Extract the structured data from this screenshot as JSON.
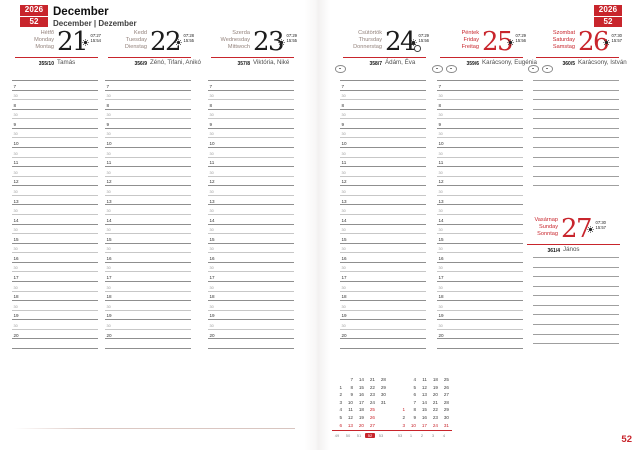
{
  "page": {
    "year": "2026",
    "week": "52",
    "month_title": "December",
    "month_subtitle": "December | Dezember",
    "page_number": "52"
  },
  "colors": {
    "accent_red": "#c8252c",
    "line_dark": "#8f8f8f",
    "line_light": "#c7c7c7"
  },
  "days": [
    {
      "name_hu": "Hétfő",
      "name_en": "Monday",
      "name_de": "Montag",
      "date": "21",
      "sunrise": "07:27",
      "sunset": "15:54",
      "day_of_year": "355/10",
      "namedays": "Tamás",
      "red": false
    },
    {
      "name_hu": "Kedd",
      "name_en": "Tuesday",
      "name_de": "Dienstag",
      "date": "22",
      "sunrise": "07:28",
      "sunset": "15:55",
      "day_of_year": "356/9",
      "namedays": "Zénó, Tifani, Anikó",
      "red": false
    },
    {
      "name_hu": "Szerda",
      "name_en": "Wednesday",
      "name_de": "Mittwoch",
      "date": "23",
      "sunrise": "07:29",
      "sunset": "15:55",
      "day_of_year": "357/8",
      "namedays": "Viktória, Niké",
      "red": false
    },
    {
      "name_hu": "Csütörtök",
      "name_en": "Thursday",
      "name_de": "Donnerstag",
      "date": "24",
      "sunrise": "07:29",
      "sunset": "15:56",
      "day_of_year": "358/7",
      "namedays": "Ádám, Éva",
      "red": false
    },
    {
      "name_hu": "Péntek",
      "name_en": "Friday",
      "name_de": "Freitag",
      "date": "25",
      "sunrise": "07:29",
      "sunset": "15:56",
      "day_of_year": "359/6",
      "namedays": "Karácsony, Eugénia",
      "red": true
    },
    {
      "name_hu": "Szombat",
      "name_en": "Saturday",
      "name_de": "Samstag",
      "date": "26",
      "sunrise": "07:30",
      "sunset": "15:57",
      "day_of_year": "360/5",
      "namedays": "Karácsony, István",
      "red": true
    },
    {
      "name_hu": "Vasárnap",
      "name_en": "Sunday",
      "name_de": "Sonntag",
      "date": "27",
      "sunrise": "07:30",
      "sunset": "15:57",
      "day_of_year": "361/4",
      "namedays": "János",
      "red": true
    }
  ],
  "time_grid": {
    "hours": [
      "7",
      "8",
      "9",
      "10",
      "11",
      "12",
      "13",
      "14",
      "15",
      "16",
      "17",
      "18",
      "19",
      "20"
    ],
    "half_label": "30"
  },
  "mini_calendar": {
    "months": [
      {
        "rows": [
          [
            "",
            "7",
            "14",
            "21",
            "28"
          ],
          [
            "1",
            "8",
            "15",
            "22",
            "29"
          ],
          [
            "2",
            "9",
            "16",
            "23",
            "30"
          ],
          [
            "3",
            "10",
            "17",
            "24",
            "31"
          ],
          [
            "4",
            "11",
            "18",
            "25",
            ""
          ],
          [
            "5",
            "12",
            "19",
            "26",
            ""
          ],
          [
            "6",
            "13",
            "20",
            "27",
            ""
          ]
        ],
        "red_cells": [
          [
            4,
            3
          ],
          [
            5,
            3
          ],
          [
            6,
            0
          ],
          [
            6,
            1
          ],
          [
            6,
            2
          ],
          [
            6,
            3
          ]
        ]
      },
      {
        "rows": [
          [
            "",
            "4",
            "11",
            "18",
            "25"
          ],
          [
            "",
            "5",
            "12",
            "19",
            "26"
          ],
          [
            "",
            "6",
            "13",
            "20",
            "27"
          ],
          [
            "",
            "7",
            "14",
            "21",
            "28"
          ],
          [
            "1",
            "8",
            "15",
            "22",
            "29"
          ],
          [
            "2",
            "9",
            "16",
            "23",
            "30"
          ],
          [
            "3",
            "10",
            "17",
            "24",
            "31"
          ]
        ],
        "red_cells": [
          [
            4,
            0
          ],
          [
            6,
            0
          ],
          [
            6,
            1
          ],
          [
            6,
            2
          ],
          [
            6,
            3
          ],
          [
            6,
            4
          ]
        ]
      }
    ],
    "week_numbers": [
      "49",
      "50",
      "51",
      "52",
      "53",
      "53",
      "1",
      "2",
      "3",
      "4"
    ],
    "current_week_index": 3
  }
}
